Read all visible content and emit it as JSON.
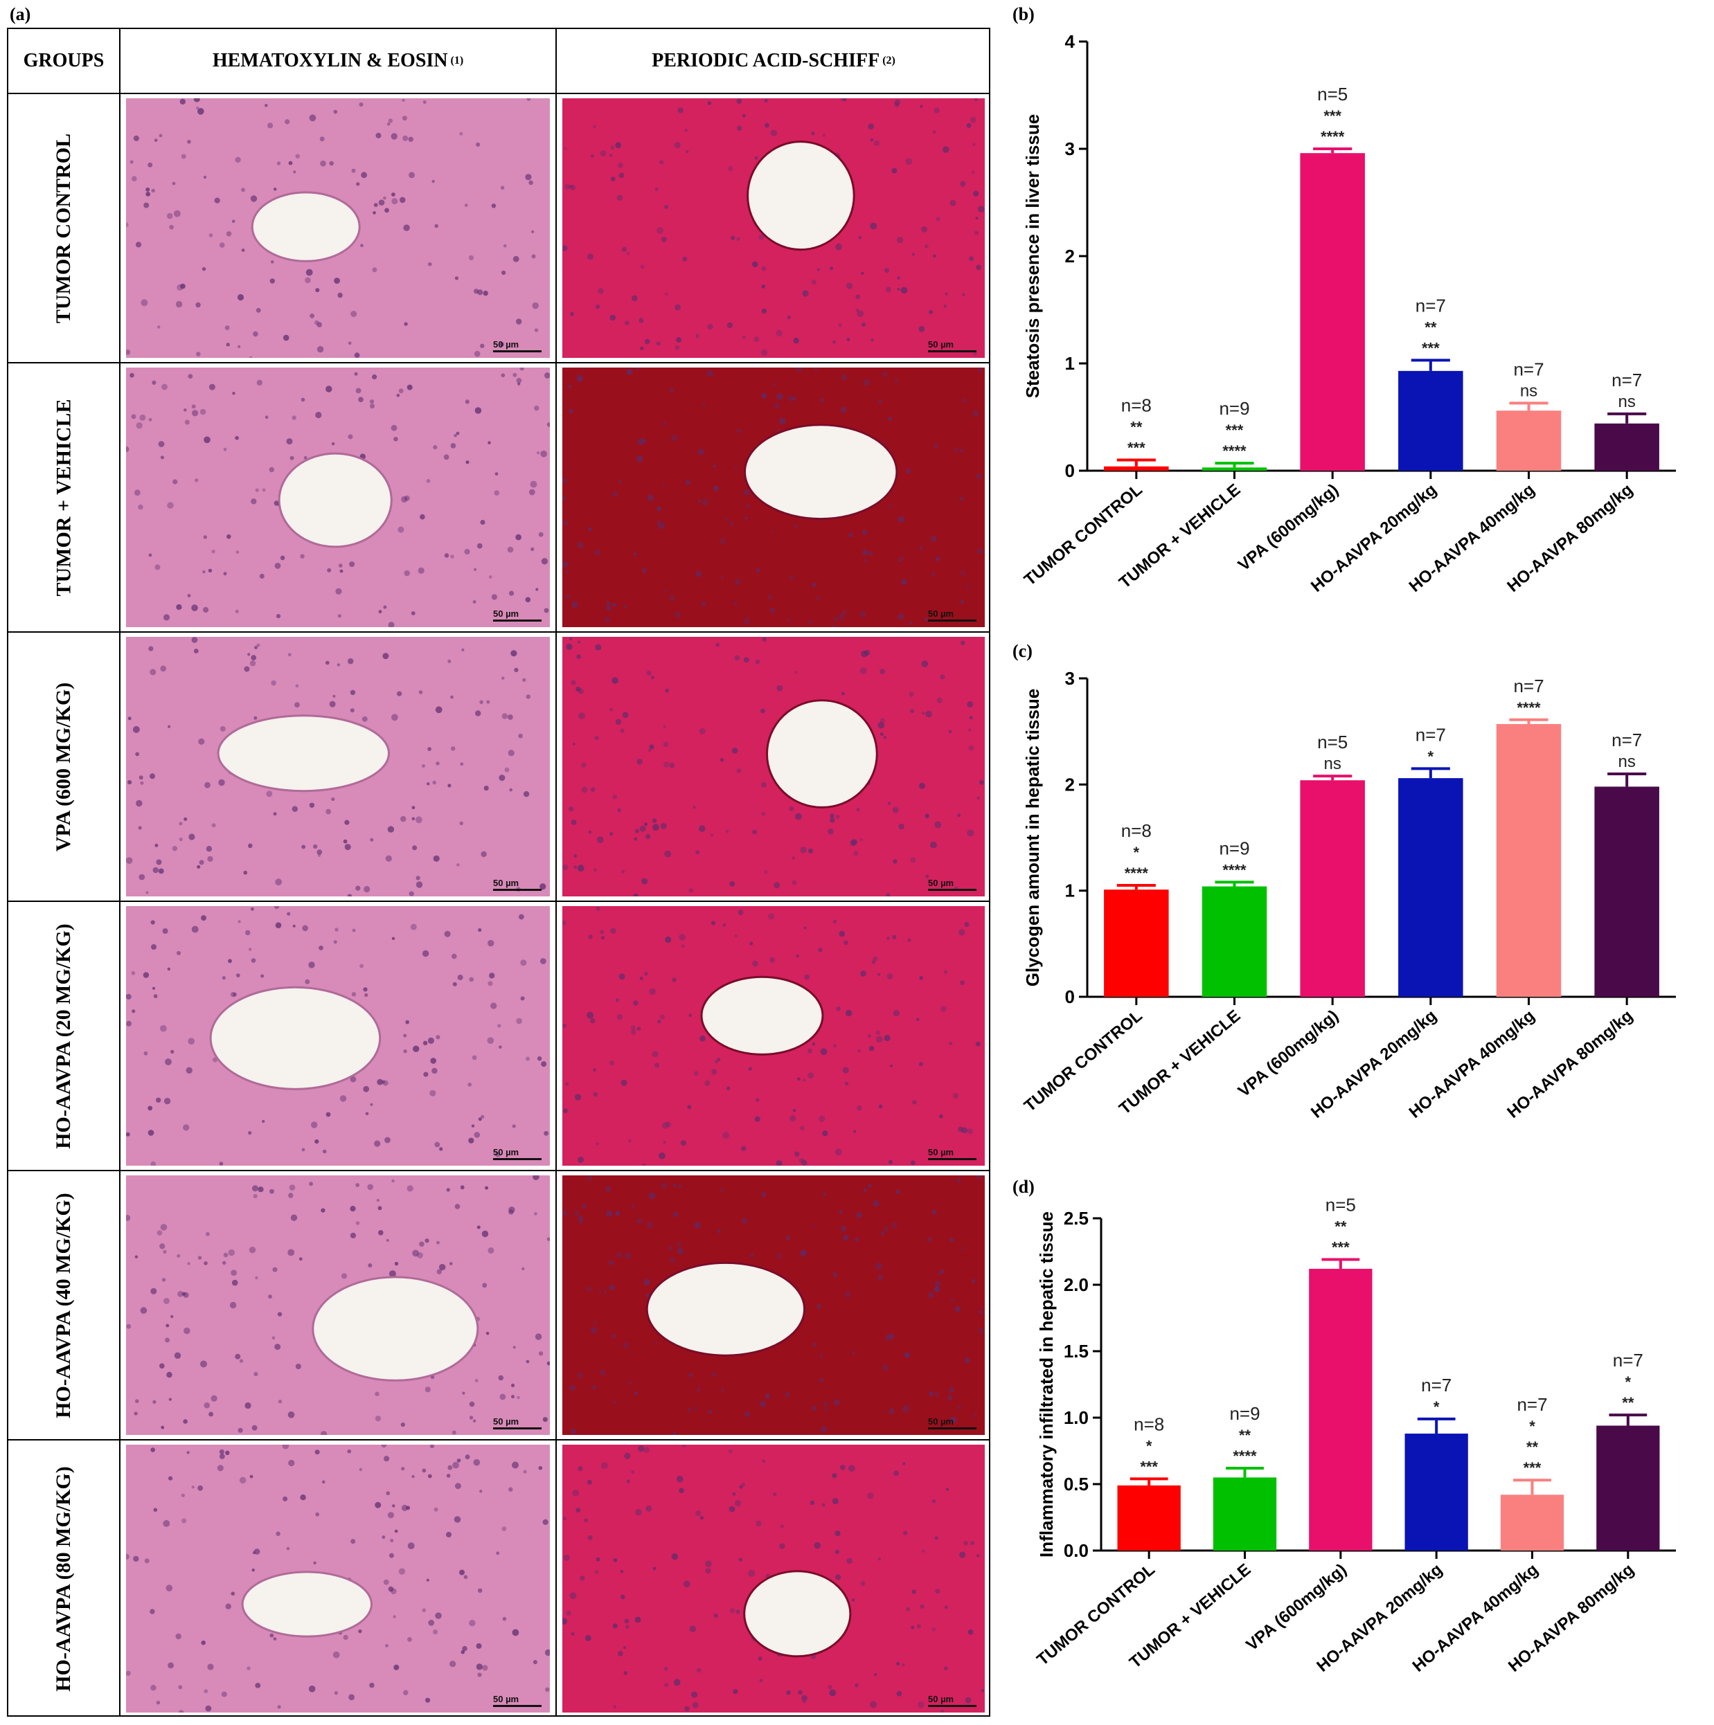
{
  "panels": {
    "a": "(a)",
    "b": "(b)",
    "c": "(c)",
    "d": "(d)"
  },
  "table": {
    "col_groups": "GROUPS",
    "col_he": "HEMATOXYLIN & EOSIN",
    "col_he_sup": "(1)",
    "col_pas": "PERIODIC ACID-SCHIFF",
    "col_pas_sup": "(2)",
    "rows": [
      {
        "label": "TUMOR CONTROL"
      },
      {
        "label": "TUMOR + VEHICLE"
      },
      {
        "label": "VPA (600 MG/KG)"
      },
      {
        "label": "HO-AAVPA (20 MG/KG)"
      },
      {
        "label": "HO-AAVPA (40 MG/KG)"
      },
      {
        "label": "HO-AAVPA (80 MG/KG)"
      }
    ],
    "scale_bar": "50 µm",
    "stain_colors": {
      "he": "#d88ab8",
      "pas": "#d4225e",
      "pas_dark": "#9a0f1c",
      "nucleus": "#5a2d6e",
      "arrow_black": "#000000",
      "arrow_yellow": "#f5ea14"
    }
  },
  "chart_data": [
    {
      "type": "bar",
      "panel": "(b)",
      "ylabel": "Steatosis presence in liver tissue",
      "ylim": [
        0,
        4
      ],
      "yticks": [
        "0",
        "1",
        "2",
        "3",
        "4"
      ],
      "categories": [
        "TUMOR CONTROL",
        "TUMOR + VEHICLE",
        "VPA (600mg/kg)",
        "HO-AAVPA 20mg/kg",
        "HO-AAVPA 40mg/kg",
        "HO-AAVPA 80mg/kg"
      ],
      "values": [
        0.04,
        0.03,
        2.96,
        0.93,
        0.56,
        0.44
      ],
      "errors": [
        0.06,
        0.04,
        0.04,
        0.1,
        0.07,
        0.09
      ],
      "colors": [
        "#ff0000",
        "#00c000",
        "#e8106a",
        "#0a14b4",
        "#fa8080",
        "#4a0a4a"
      ],
      "annotations": [
        [
          "n=8",
          "**",
          "***"
        ],
        [
          "n=9",
          "***",
          "****"
        ],
        [
          "n=5",
          "***",
          "****"
        ],
        [
          "n=7",
          "**",
          "***"
        ],
        [
          "n=7",
          "ns"
        ],
        [
          "n=7",
          "ns"
        ]
      ]
    },
    {
      "type": "bar",
      "panel": "(c)",
      "ylabel": "Glycogen amount in hepatic tissue",
      "ylim": [
        0,
        3
      ],
      "yticks": [
        "0",
        "1",
        "2",
        "3"
      ],
      "categories": [
        "TUMOR CONTROL",
        "TUMOR + VEHICLE",
        "VPA (600mg/kg)",
        "HO-AAVPA 20mg/kg",
        "HO-AAVPA 40mg/kg",
        "HO-AAVPA 80mg/kg"
      ],
      "values": [
        1.01,
        1.04,
        2.04,
        2.06,
        2.57,
        1.98
      ],
      "errors": [
        0.04,
        0.04,
        0.04,
        0.09,
        0.04,
        0.12
      ],
      "colors": [
        "#ff0000",
        "#00c000",
        "#e8106a",
        "#0a14b4",
        "#fa8080",
        "#4a0a4a"
      ],
      "annotations": [
        [
          "n=8",
          "*",
          "****"
        ],
        [
          "n=9",
          "****"
        ],
        [
          "n=5",
          "ns"
        ],
        [
          "n=7",
          "*"
        ],
        [
          "n=7",
          "****"
        ],
        [
          "n=7",
          "ns"
        ]
      ]
    },
    {
      "type": "bar",
      "panel": "(d)",
      "ylabel": "Inflammatory infiltrated in hepatic tissue",
      "ylim": [
        0,
        2.5
      ],
      "yticks": [
        "0.0",
        "0.5",
        "1.0",
        "1.5",
        "2.0",
        "2.5"
      ],
      "categories": [
        "TUMOR CONTROL",
        "TUMOR + VEHICLE",
        "VPA (600mg/kg)",
        "HO-AAVPA 20mg/kg",
        "HO-AAVPA 40mg/kg",
        "HO-AAVPA 80mg/kg"
      ],
      "values": [
        0.49,
        0.55,
        2.12,
        0.88,
        0.42,
        0.94
      ],
      "errors": [
        0.05,
        0.07,
        0.07,
        0.11,
        0.11,
        0.08
      ],
      "colors": [
        "#ff0000",
        "#00c000",
        "#e8106a",
        "#0a14b4",
        "#fa8080",
        "#4a0a4a"
      ],
      "annotations": [
        [
          "n=8",
          "*",
          "***"
        ],
        [
          "n=9",
          "**",
          "****"
        ],
        [
          "n=5",
          "**",
          "***"
        ],
        [
          "n=7",
          "*"
        ],
        [
          "n=7",
          "*",
          "**",
          "***"
        ],
        [
          "n=7",
          "*",
          "**"
        ]
      ]
    }
  ]
}
